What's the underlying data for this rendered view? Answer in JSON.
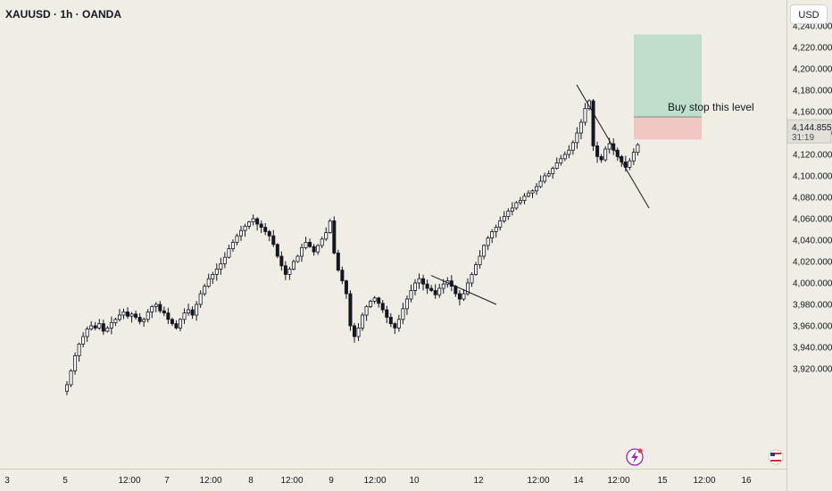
{
  "header": {
    "symbol_title": "XAUUSD · 1h · OANDA"
  },
  "toolbar": {
    "currency_label": "USD"
  },
  "chart_data": {
    "type": "candlestick",
    "symbol": "XAUUSD",
    "timeframe": "1h",
    "broker": "OANDA",
    "currency": "USD",
    "y_ticks": [
      "4,240.000",
      "4,220.000",
      "4,200.000",
      "4,180.000",
      "4,160.000",
      "4,140.000",
      "4,120.000",
      "4,100.000",
      "4,080.000",
      "4,060.000",
      "4,040.000",
      "4,020.000",
      "4,000.000",
      "3,980.000",
      "3,960.000",
      "3,940.000",
      "3,920.000"
    ],
    "ylim": [
      3910,
      4245
    ],
    "x_tick_labels": [
      "3",
      "5",
      "12:00",
      "7",
      "12:00",
      "8",
      "12:00",
      "9",
      "12:00",
      "10",
      "12",
      "12:00",
      "14",
      "12:00",
      "15",
      "12:00",
      "16"
    ],
    "current_price_label": "4,144.855",
    "countdown_label": "31:19",
    "annotation_text": "Buy stop this level",
    "trade_box": {
      "take_profit": 4232,
      "entry": 4155,
      "stop_loss": 4134
    },
    "trendlines": [
      {
        "from": {
          "x": "Nov 13 ~20:00",
          "y": 4185
        },
        "to": {
          "x": "Nov 14 ~20:00",
          "y": 4070
        }
      },
      {
        "from": {
          "x": "Nov 10 ~13:00",
          "y": 4007
        },
        "to": {
          "x": "Nov 11 ~06:00",
          "y": 3980
        }
      }
    ],
    "colors": {
      "up_candle": "#ffffff",
      "down_candle": "#131722",
      "wick": "#131722",
      "profit_zone": "#bfdecb",
      "loss_zone": "#f1c7c4",
      "price_tag": "#e2e0d8"
    },
    "grid": false,
    "closes": [
      3905,
      3918,
      3932,
      3943,
      3950,
      3957,
      3960,
      3958,
      3962,
      3955,
      3958,
      3963,
      3966,
      3970,
      3973,
      3969,
      3971,
      3968,
      3964,
      3966,
      3973,
      3978,
      3980,
      3974,
      3972,
      3966,
      3962,
      3958,
      3966,
      3972,
      3975,
      3970,
      3980,
      3990,
      3997,
      4004,
      4008,
      4013,
      4018,
      4024,
      4032,
      4038,
      4044,
      4049,
      4053,
      4057,
      4060,
      4055,
      4052,
      4048,
      4044,
      4036,
      4025,
      4016,
      4008,
      4013,
      4020,
      4025,
      4033,
      4038,
      4034,
      4029,
      4035,
      4041,
      4047,
      4058,
      4028,
      4012,
      4002,
      3990,
      3960,
      3950,
      3958,
      3970,
      3978,
      3983,
      3986,
      3981,
      3975,
      3968,
      3962,
      3958,
      3966,
      3976,
      3985,
      3993,
      4000,
      4004,
      3999,
      3995,
      3993,
      3989,
      3995,
      3999,
      4002,
      3997,
      3990,
      3985,
      3990,
      4000,
      4008,
      4017,
      4025,
      4035,
      4042,
      4048,
      4052,
      4058,
      4062,
      4067,
      4070,
      4075,
      4077,
      4081,
      4084,
      4086,
      4090,
      4095,
      4100,
      4102,
      4107,
      4112,
      4116,
      4120,
      4124,
      4131,
      4140,
      4150,
      4163,
      4170,
      4128,
      4118,
      4115,
      4125,
      4130,
      4124,
      4118,
      4113,
      4108,
      4114,
      4122,
      4129,
      4136,
      4143,
      4150,
      4149,
      4147,
      4145
    ]
  }
}
